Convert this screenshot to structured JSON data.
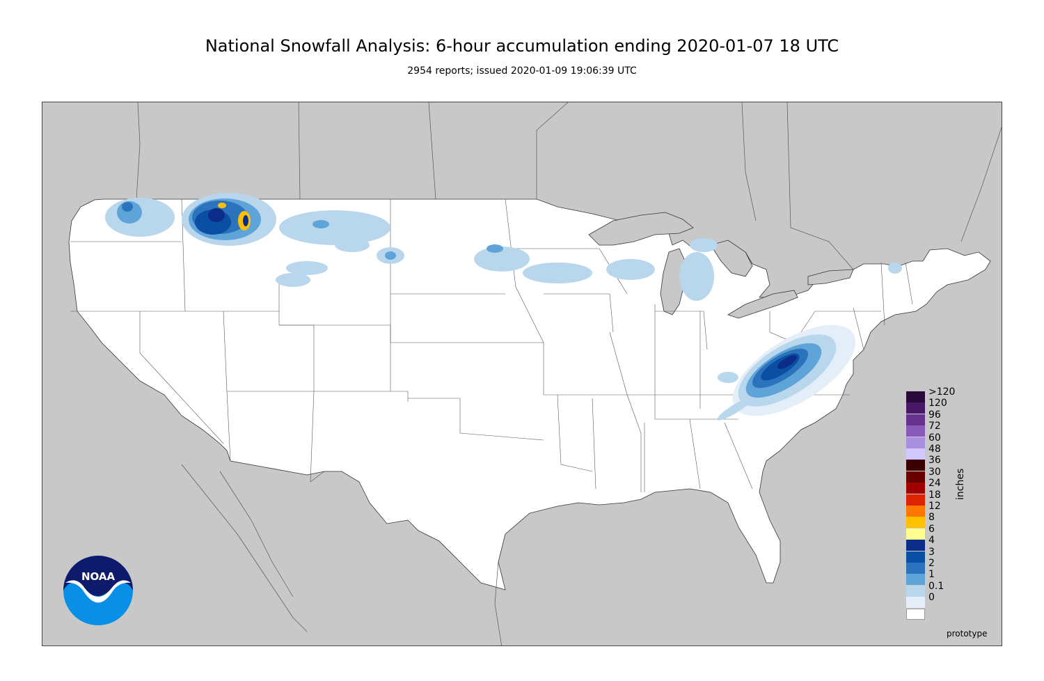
{
  "header": {
    "title": "National Snowfall Analysis: 6-hour accumulation ending 2020-01-07 18 UTC",
    "subtitle": "2954 reports; issued 2020-01-09 19:06:39 UTC"
  },
  "logo": {
    "text": "NOAA",
    "icon": "noaa-logo-icon"
  },
  "legend": {
    "unit": "inches",
    "entries": [
      {
        "label": ">120",
        "color": "#2a0a3a"
      },
      {
        "label": "120",
        "color": "#4a1868"
      },
      {
        "label": "96",
        "color": "#66328e"
      },
      {
        "label": "72",
        "color": "#8859b8"
      },
      {
        "label": "60",
        "color": "#a88fe0"
      },
      {
        "label": "48",
        "color": "#d0c8ff"
      },
      {
        "label": "36",
        "color": "#3a0000"
      },
      {
        "label": "30",
        "color": "#680000"
      },
      {
        "label": "24",
        "color": "#a00000"
      },
      {
        "label": "18",
        "color": "#dd2200"
      },
      {
        "label": "12",
        "color": "#ff7700"
      },
      {
        "label": "8",
        "color": "#ffc000"
      },
      {
        "label": "6",
        "color": "#ffff90"
      },
      {
        "label": "4",
        "color": "#0c2c8a"
      },
      {
        "label": "3",
        "color": "#0b4fa4"
      },
      {
        "label": "2",
        "color": "#2c73bd"
      },
      {
        "label": "1",
        "color": "#5fa4d8"
      },
      {
        "label": "0.1",
        "color": "#b8d6ec"
      },
      {
        "label": "0",
        "color": "#e4eef8"
      },
      {
        "label": "",
        "color": "#ffffff"
      }
    ]
  },
  "footer": {
    "note": "prototype"
  }
}
